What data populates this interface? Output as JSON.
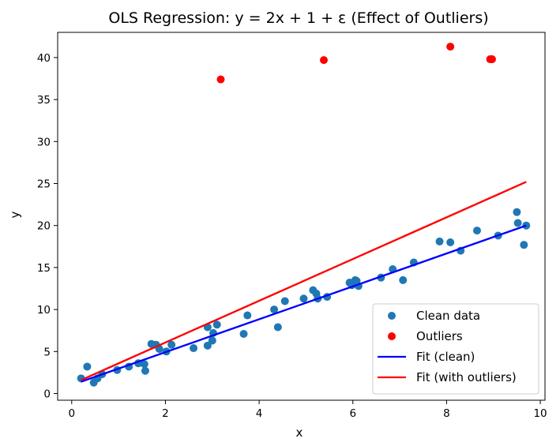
{
  "chart_data": {
    "type": "scatter",
    "title": "OLS Regression: y = 2x + 1 + ε (Effect of Outliers)",
    "xlabel": "x",
    "ylabel": "y",
    "xlim": [
      -0.3,
      10.1
    ],
    "ylim": [
      -0.8,
      43.0
    ],
    "xticks": [
      0,
      2,
      4,
      6,
      8,
      10
    ],
    "yticks": [
      0,
      5,
      10,
      15,
      20,
      25,
      30,
      35,
      40
    ],
    "grid": false,
    "legend_position": "lower-right",
    "series": [
      {
        "name": "Clean data",
        "kind": "scatter",
        "color": "#1f77b4",
        "points": [
          [
            0.2,
            1.8
          ],
          [
            0.33,
            3.2
          ],
          [
            0.47,
            1.3
          ],
          [
            0.55,
            1.8
          ],
          [
            0.65,
            2.3
          ],
          [
            0.97,
            2.8
          ],
          [
            1.22,
            3.2
          ],
          [
            1.42,
            3.6
          ],
          [
            1.55,
            3.5
          ],
          [
            1.57,
            2.7
          ],
          [
            1.7,
            5.9
          ],
          [
            1.8,
            5.8
          ],
          [
            1.87,
            5.3
          ],
          [
            2.02,
            5.0
          ],
          [
            2.13,
            5.8
          ],
          [
            2.6,
            5.4
          ],
          [
            2.9,
            5.7
          ],
          [
            2.9,
            7.9
          ],
          [
            3.0,
            6.3
          ],
          [
            3.02,
            7.2
          ],
          [
            3.1,
            8.2
          ],
          [
            3.67,
            7.1
          ],
          [
            3.75,
            9.3
          ],
          [
            4.32,
            10.0
          ],
          [
            4.4,
            7.9
          ],
          [
            4.55,
            11.0
          ],
          [
            4.95,
            11.3
          ],
          [
            5.15,
            12.3
          ],
          [
            5.22,
            11.9
          ],
          [
            5.25,
            11.3
          ],
          [
            5.45,
            11.5
          ],
          [
            5.93,
            13.2
          ],
          [
            5.98,
            12.9
          ],
          [
            6.05,
            13.5
          ],
          [
            6.08,
            13.4
          ],
          [
            6.12,
            12.8
          ],
          [
            6.6,
            13.8
          ],
          [
            6.85,
            14.8
          ],
          [
            7.07,
            13.5
          ],
          [
            7.3,
            15.6
          ],
          [
            7.85,
            18.1
          ],
          [
            8.08,
            18.0
          ],
          [
            8.3,
            17.0
          ],
          [
            8.65,
            19.4
          ],
          [
            9.1,
            18.8
          ],
          [
            9.5,
            21.6
          ],
          [
            9.52,
            20.3
          ],
          [
            9.65,
            17.7
          ],
          [
            9.7,
            20.0
          ]
        ]
      },
      {
        "name": "Outliers",
        "kind": "scatter",
        "color": "#ff0000",
        "points": [
          [
            3.18,
            37.4
          ],
          [
            5.38,
            39.7
          ],
          [
            8.08,
            41.3
          ],
          [
            8.93,
            39.8
          ],
          [
            8.97,
            39.8
          ]
        ]
      },
      {
        "name": "Fit (clean)",
        "kind": "line",
        "color": "#0000ff",
        "points": [
          [
            0.2,
            1.4
          ],
          [
            9.7,
            20.0
          ]
        ]
      },
      {
        "name": "Fit (with outliers)",
        "kind": "line",
        "color": "#ff0000",
        "points": [
          [
            0.2,
            1.6
          ],
          [
            9.7,
            25.2
          ]
        ]
      }
    ]
  }
}
